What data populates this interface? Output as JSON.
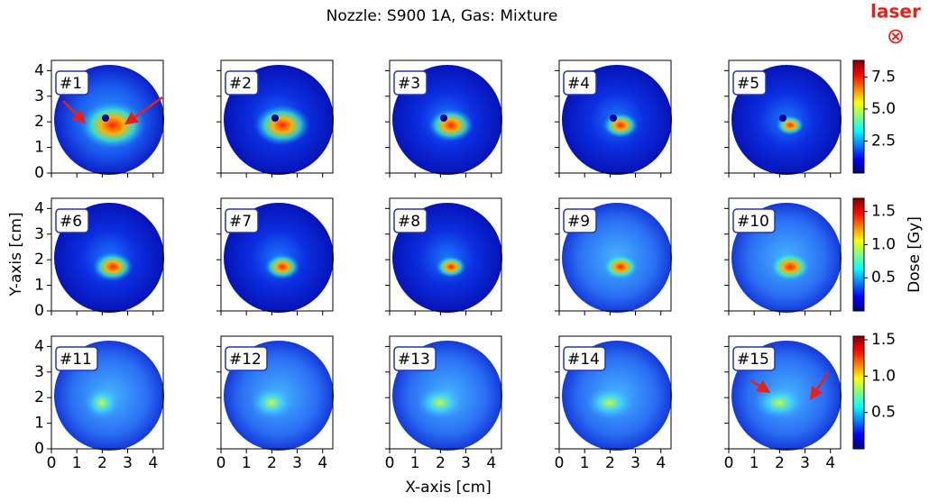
{
  "chart_data": {
    "type": "heatmap",
    "title": "Nozzle: S900 1A, Gas: Mixture",
    "xlabel": "X-axis [cm]",
    "ylabel": "Y-axis [cm]",
    "annotation": "laser",
    "annotation_symbol": "⊗",
    "xlim": [
      0,
      4.4
    ],
    "ylim": [
      0,
      4.4
    ],
    "xticks": [
      0,
      1,
      2,
      3,
      4
    ],
    "yticks": [
      0,
      1,
      2,
      3,
      4
    ],
    "panels": [
      "#1",
      "#2",
      "#3",
      "#4",
      "#5",
      "#6",
      "#7",
      "#8",
      "#9",
      "#10",
      "#11",
      "#12",
      "#13",
      "#14",
      "#15"
    ],
    "colormap": "jet",
    "colorbars": [
      {
        "clim": [
          0,
          8.8
        ],
        "ticks": [
          2.5,
          {
            "value": 5.0,
            "label": "5.0"
          },
          7.5
        ]
      },
      {
        "clim": [
          0,
          1.7
        ],
        "ticks": [
          0.5,
          {
            "value": 1.0,
            "label": "1.0"
          },
          1.5
        ],
        "label": "Dose [Gy]"
      },
      {
        "clim": [
          0,
          1.55
        ],
        "ticks": [
          0.5,
          {
            "value": 1.0,
            "label": "1.0"
          },
          1.5
        ]
      }
    ]
  }
}
